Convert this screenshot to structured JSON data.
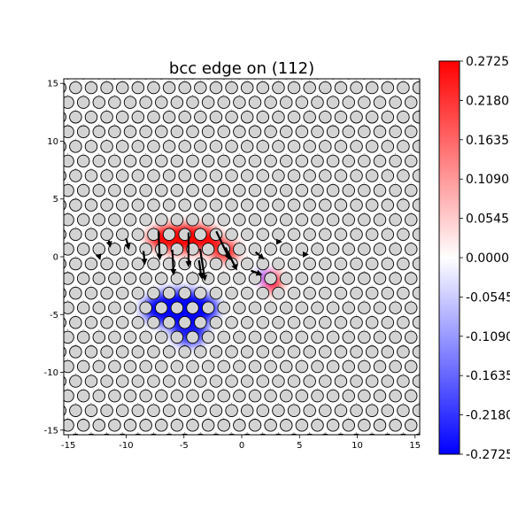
{
  "chart_data": {
    "type": "heatmap",
    "title": "bcc edge on (112)",
    "xlabel": "",
    "ylabel": "",
    "xlim": [
      -15.4,
      15.4
    ],
    "ylim": [
      -15.4,
      15.4
    ],
    "x_ticks": [
      -15,
      -10,
      -5,
      0,
      5,
      10,
      15
    ],
    "y_ticks": [
      -15,
      -10,
      -5,
      0,
      5,
      10,
      15
    ],
    "grid": false,
    "colormap": "bwr",
    "colorbar": {
      "min": -0.2725,
      "max": 0.2725,
      "tick_labels": [
        "0.2725",
        "0.2180",
        "0.1635",
        "0.1090",
        "0.0545",
        "0.0000",
        "-0.0545",
        "-0.1090",
        "-0.1635",
        "-0.2180",
        "-0.2725"
      ],
      "tick_values": [
        0.2725,
        0.218,
        0.1635,
        0.109,
        0.0545,
        0.0,
        -0.0545,
        -0.109,
        -0.1635,
        -0.218,
        -0.2725
      ]
    },
    "atom_lattice": {
      "x_step": 1.35,
      "y_step": 1.27,
      "row_shift": 0.675,
      "dislocation_core": [
        0.0,
        0.2
      ],
      "atom_fill": "#d3d3d3",
      "atom_edge": "#000000"
    },
    "field_regions": [
      {
        "sign": "positive",
        "center": [
          -5.0,
          1.6
        ],
        "spread": [
          3.2,
          1.2
        ],
        "peak": 0.2725
      },
      {
        "sign": "positive",
        "center": [
          -1.5,
          0.5
        ],
        "spread": [
          1.3,
          0.9
        ],
        "peak": 0.18
      },
      {
        "sign": "positive",
        "center": [
          2.7,
          -2.2
        ],
        "spread": [
          0.7,
          0.9
        ],
        "peak": 0.2725
      },
      {
        "sign": "negative",
        "center": [
          -5.3,
          -4.5
        ],
        "spread": [
          3.3,
          1.6
        ],
        "peak": -0.2725
      },
      {
        "sign": "negative",
        "center": [
          -4.5,
          -6.5
        ],
        "spread": [
          1.5,
          1.2
        ],
        "peak": -0.2
      },
      {
        "sign": "negative",
        "center": [
          1.8,
          -1.7
        ],
        "spread": [
          0.5,
          0.5
        ],
        "peak": -0.15
      }
    ],
    "displacement_arrows": [
      {
        "x": -7.2,
        "y": 2.2,
        "dx": 0.1,
        "dy": -2.3
      },
      {
        "x": -6.0,
        "y": 0.6,
        "dx": 0.1,
        "dy": -2.0
      },
      {
        "x": -4.6,
        "y": 2.1,
        "dx": 0.0,
        "dy": -2.8
      },
      {
        "x": -3.6,
        "y": 0.7,
        "dx": 0.4,
        "dy": -2.6
      },
      {
        "x": -2.2,
        "y": 2.2,
        "dx": 1.1,
        "dy": -2.3
      },
      {
        "x": -1.4,
        "y": 0.8,
        "dx": 0.9,
        "dy": -1.8
      },
      {
        "x": -8.5,
        "y": 0.5,
        "dx": 0.1,
        "dy": -1.0
      },
      {
        "x": -10.0,
        "y": 1.6,
        "dx": 0.2,
        "dy": -0.8
      },
      {
        "x": -3.7,
        "y": -0.3,
        "dx": 0.2,
        "dy": -1.4
      },
      {
        "x": 1.2,
        "y": 0.4,
        "dx": 0.6,
        "dy": -0.5
      },
      {
        "x": 0.8,
        "y": -1.2,
        "dx": 0.8,
        "dy": -0.3
      },
      {
        "x": -11.5,
        "y": 1.4,
        "dx": 0.1,
        "dy": -0.4
      },
      {
        "x": -12.4,
        "y": 0.2,
        "dx": 0.1,
        "dy": -0.3
      },
      {
        "x": 3.1,
        "y": 1.3,
        "dx": 0.2,
        "dy": 0.0
      },
      {
        "x": 5.4,
        "y": 0.2,
        "dx": 0.2,
        "dy": 0.0
      }
    ]
  }
}
